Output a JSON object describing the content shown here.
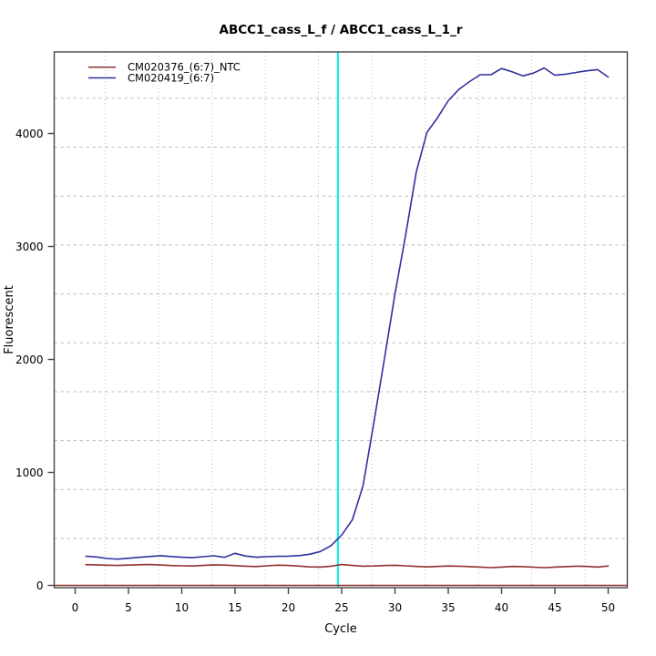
{
  "chart_data": {
    "type": "line",
    "title": "ABCC1_cass_L_f / ABCC1_cass_L_1_r",
    "xlabel": "Cycle",
    "ylabel": "Fluorescent",
    "x": [
      1,
      2,
      3,
      4,
      5,
      6,
      7,
      8,
      9,
      10,
      11,
      12,
      13,
      14,
      15,
      16,
      17,
      18,
      19,
      20,
      21,
      22,
      23,
      24,
      25,
      26,
      27,
      28,
      29,
      30,
      31,
      32,
      33,
      34,
      35,
      36,
      37,
      38,
      39,
      40,
      41,
      42,
      43,
      44,
      45,
      46,
      47,
      48,
      49,
      50
    ],
    "series": [
      {
        "name": "CM020376_(6:7)_NTC",
        "color": "#8F2F2D",
        "values": [
          184,
          182,
          179,
          177,
          180,
          183,
          185,
          181,
          176,
          173,
          172,
          177,
          182,
          180,
          175,
          170,
          167,
          173,
          179,
          177,
          171,
          164,
          162,
          170,
          185,
          177,
          170,
          172,
          176,
          178,
          173,
          168,
          164,
          168,
          172,
          170,
          166,
          162,
          157,
          162,
          168,
          166,
          161,
          157,
          162,
          166,
          170,
          168,
          162,
          172
        ]
      },
      {
        "name": "CM020419_(6:7)",
        "color": "#30309E",
        "values": [
          258,
          252,
          238,
          232,
          240,
          248,
          256,
          263,
          256,
          249,
          245,
          254,
          262,
          248,
          284,
          260,
          249,
          254,
          257,
          259,
          264,
          276,
          300,
          352,
          445,
          580,
          880,
          1430,
          2000,
          2580,
          3100,
          3660,
          4010,
          4140,
          4290,
          4390,
          4460,
          4520,
          4520,
          4575,
          4545,
          4510,
          4535,
          4580,
          4515,
          4525,
          4540,
          4555,
          4565,
          4500
        ]
      }
    ],
    "threshold_cycle": 24.65,
    "threshold_line_color": "#19ECEC",
    "zero_line_value": 0,
    "zero_line_color": "#8F2F2D",
    "x_ticks": [
      0,
      5,
      10,
      15,
      20,
      25,
      30,
      35,
      40,
      45,
      50
    ],
    "y_ticks": [
      0,
      1000,
      2000,
      3000,
      4000
    ],
    "xlim": [
      -1.97,
      51.8
    ],
    "ylim": [
      -20,
      4722
    ],
    "legend_position": "top-left",
    "grid": {
      "on": true,
      "color": "#BDBDBD",
      "x_cycles": [
        2.82,
        7.82,
        12.82,
        17.82,
        22.82,
        27.82,
        32.82,
        37.82,
        42.82,
        47.82
      ],
      "y_values": [
        415,
        848,
        1281,
        1714,
        2147,
        2580,
        3013,
        3446,
        3879,
        4312
      ]
    }
  }
}
